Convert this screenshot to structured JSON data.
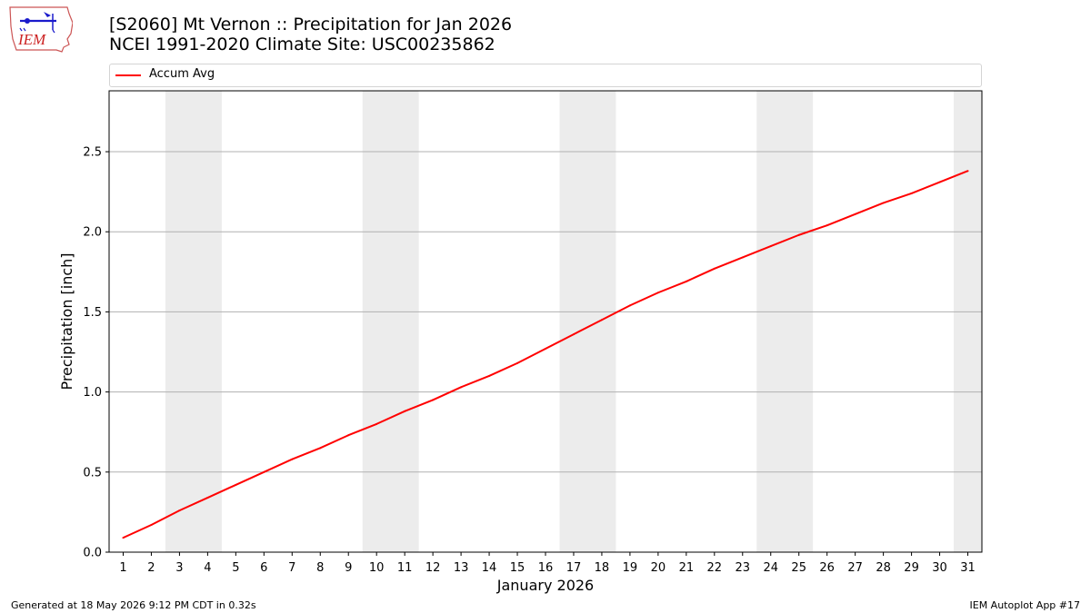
{
  "header": {
    "logo_text": "IEM",
    "title_line1": "[S2060] Mt Vernon :: Precipitation for Jan 2026",
    "title_line2": "NCEI 1991-2020 Climate Site: USC00235862"
  },
  "footer": {
    "generated": "Generated at 18 May 2026 9:12 PM CDT in 0.32s",
    "app": "IEM Autoplot App #17"
  },
  "colors": {
    "series": "#ff0000",
    "weekend_band": "#ececec",
    "grid": "#b0b0b0",
    "logo_blue": "#1a1acc",
    "logo_red": "#cc2222"
  },
  "chart_data": {
    "type": "line",
    "xlabel": "January 2026",
    "ylabel": "Precipitation [inch]",
    "xlim": [
      0.5,
      31.5
    ],
    "ylim": [
      0,
      2.88
    ],
    "yticks": [
      0.0,
      0.5,
      1.0,
      1.5,
      2.0,
      2.5
    ],
    "ytick_labels": [
      "0.0",
      "0.5",
      "1.0",
      "1.5",
      "2.0",
      "2.5"
    ],
    "xticks": [
      1,
      2,
      3,
      4,
      5,
      6,
      7,
      8,
      9,
      10,
      11,
      12,
      13,
      14,
      15,
      16,
      17,
      18,
      19,
      20,
      21,
      22,
      23,
      24,
      25,
      26,
      27,
      28,
      29,
      30,
      31
    ],
    "grid": "horizontal",
    "legend": "top",
    "weekend_bands": [
      [
        3,
        4
      ],
      [
        10,
        11
      ],
      [
        17,
        18
      ],
      [
        24,
        25
      ],
      [
        31,
        31
      ]
    ],
    "series": [
      {
        "name": "Accum Avg",
        "x": [
          1,
          2,
          3,
          4,
          5,
          6,
          7,
          8,
          9,
          10,
          11,
          12,
          13,
          14,
          15,
          16,
          17,
          18,
          19,
          20,
          21,
          22,
          23,
          24,
          25,
          26,
          27,
          28,
          29,
          30,
          31
        ],
        "values": [
          0.09,
          0.17,
          0.26,
          0.34,
          0.42,
          0.5,
          0.58,
          0.65,
          0.73,
          0.8,
          0.88,
          0.95,
          1.03,
          1.1,
          1.18,
          1.27,
          1.36,
          1.45,
          1.54,
          1.62,
          1.69,
          1.77,
          1.84,
          1.91,
          1.98,
          2.04,
          2.11,
          2.18,
          2.24,
          2.31,
          2.38
        ]
      }
    ]
  }
}
